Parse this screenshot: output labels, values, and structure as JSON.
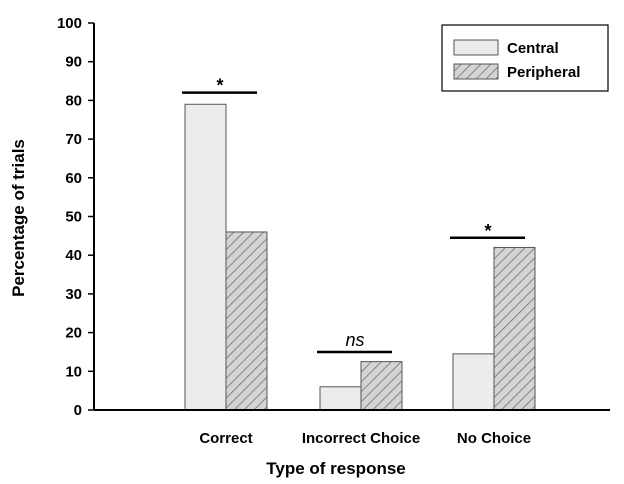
{
  "chart_data": {
    "type": "bar",
    "categories": [
      "Correct",
      "Incorrect Choice",
      "No Choice"
    ],
    "series": [
      {
        "name": "Central",
        "values": [
          79,
          6,
          14.5
        ],
        "color": "#ececec",
        "pattern": "solid"
      },
      {
        "name": "Peripheral",
        "values": [
          46,
          12.5,
          42
        ],
        "color": "#d4d4d4",
        "pattern": "hatched"
      }
    ],
    "xlabel": "Type of response",
    "ylabel": "Percentage of trials",
    "ylim": [
      0,
      100
    ],
    "yticks": [
      0,
      10,
      20,
      30,
      40,
      50,
      60,
      70,
      80,
      90,
      100
    ],
    "grid": false,
    "legend_position": "top-right",
    "annotations": [
      {
        "category": "Correct",
        "text": "*",
        "y": 82
      },
      {
        "category": "Incorrect Choice",
        "text": "ns",
        "y": 15
      },
      {
        "category": "No Choice",
        "text": "*",
        "y": 44.5
      }
    ]
  }
}
